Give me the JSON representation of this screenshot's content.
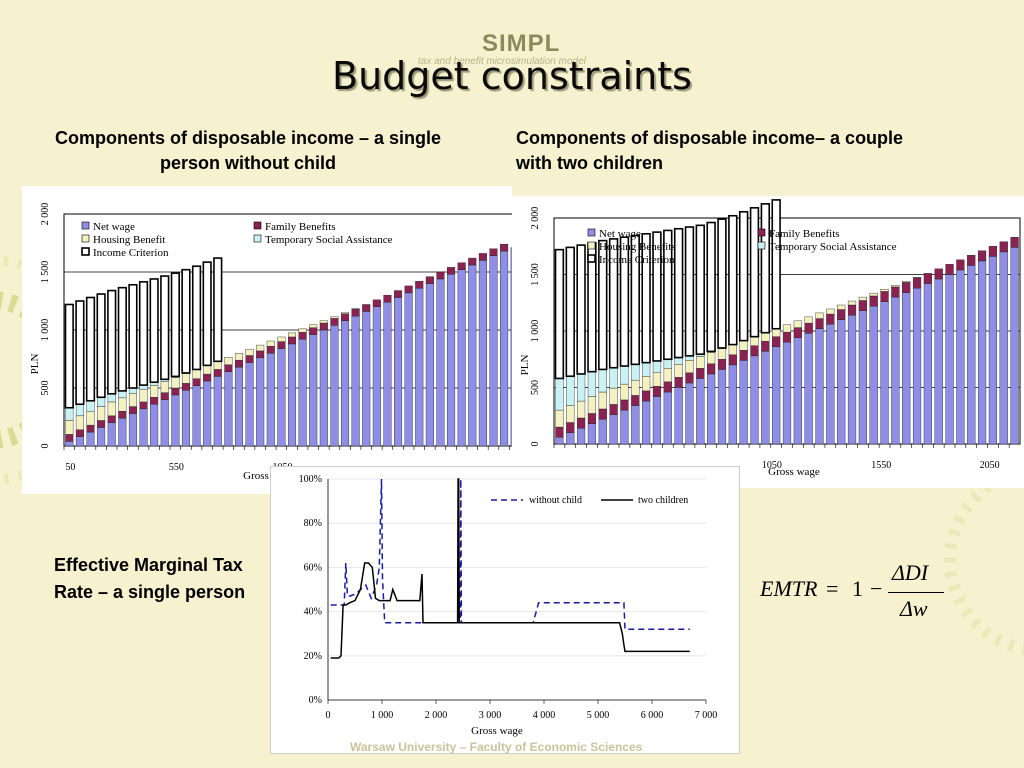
{
  "slide": {
    "logo": "SIMPL",
    "logo_sub": "tax and benefit microsimulation model",
    "title": "Budget constraints",
    "subtitle_left": "Components of disposable income – a single person without child",
    "subtitle_right": "Components of disposable income– a couple with two children",
    "emtr_label": "Effective Marginal Tax Rate – a single person",
    "formula": {
      "lhs": "EMTR",
      "eq": "=",
      "one": "1",
      "minus": "−",
      "num": "ΔDI",
      "den": "Δw"
    },
    "footer": "Warsaw University – Faculty of Economic Sciences",
    "colors": {
      "net_wage": "#8e8ee6",
      "family": "#8b2252",
      "housing": "#f5f0bf",
      "social": "#c8f2f5",
      "income": "#ffffff",
      "line_without": "#1a1aa0",
      "line_two": "#000000"
    }
  },
  "chart_data": [
    {
      "type": "bar",
      "stacked": true,
      "title": "",
      "ylabel": "PLN",
      "xlabel": "Gross wage",
      "ylim": [
        0,
        2000
      ],
      "yticks": [
        "0",
        "500",
        "1 000",
        "1 500",
        "2 000"
      ],
      "xticks": [
        "50",
        "550",
        "1050"
      ],
      "legend": [
        "Net wage",
        "Family Benefits",
        "Housing Benefit",
        "Temporary Social Assistance",
        "Income Criterion"
      ],
      "series": [
        {
          "name": "Net wage",
          "values": [
            40,
            80,
            120,
            160,
            200,
            240,
            280,
            320,
            360,
            400,
            440,
            480,
            520,
            560,
            600,
            640,
            680,
            720,
            760,
            800,
            840,
            880,
            920,
            960,
            1000,
            1040,
            1080,
            1120,
            1160,
            1200,
            1240,
            1280,
            1320,
            1360,
            1400,
            1440,
            1480,
            1520,
            1560,
            1600,
            1640,
            1680,
            1710
          ]
        },
        {
          "name": "Family Benefits",
          "values": [
            60,
            60,
            60,
            60,
            60,
            60,
            60,
            60,
            60,
            60,
            60,
            60,
            60,
            60,
            60,
            60,
            60,
            60,
            60,
            60,
            60,
            60,
            60,
            60,
            60,
            60,
            60,
            60,
            60,
            60,
            60,
            60,
            60,
            60,
            60,
            60,
            60,
            60,
            60,
            60,
            60,
            60,
            0
          ]
        },
        {
          "name": "Housing Benefit",
          "values": [
            120,
            120,
            120,
            120,
            120,
            115,
            110,
            105,
            100,
            95,
            90,
            85,
            80,
            75,
            70,
            65,
            60,
            55,
            50,
            45,
            40,
            35,
            30,
            25,
            20,
            15,
            10,
            5,
            0,
            0,
            0,
            0,
            0,
            0,
            0,
            0,
            0,
            0,
            0,
            0,
            0,
            0,
            0
          ]
        },
        {
          "name": "Temporary Social Assistance",
          "values": [
            110,
            100,
            90,
            80,
            70,
            60,
            50,
            40,
            30,
            20,
            10,
            5,
            0,
            0,
            0,
            0,
            0,
            0,
            0,
            0,
            0,
            0,
            0,
            0,
            0,
            0,
            0,
            0,
            0,
            0,
            0,
            0,
            0,
            0,
            0,
            0,
            0,
            0,
            0,
            0,
            0,
            0,
            0
          ]
        },
        {
          "name": "Income Criterion",
          "values": [
            890,
            890,
            890,
            890,
            890,
            890,
            890,
            890,
            890,
            890,
            890,
            890,
            890,
            890,
            890,
            0,
            0,
            0,
            0,
            0,
            0,
            0,
            0,
            0,
            0,
            0,
            0,
            0,
            0,
            0,
            0,
            0,
            0,
            0,
            0,
            0,
            0,
            0,
            0,
            0,
            0,
            0,
            0
          ]
        }
      ]
    },
    {
      "type": "bar",
      "stacked": true,
      "title": "",
      "ylabel": "PLN",
      "xlabel": "Gross wage",
      "ylim": [
        0,
        2000
      ],
      "yticks": [
        "0",
        "500",
        "1 000",
        "1 500",
        "2 000"
      ],
      "xticks": [
        "1050",
        "1550",
        "2050"
      ],
      "legend": [
        "Net wage",
        "Family Benefits",
        "Housing Benefits",
        "Temporary Social Assistance",
        "Income Criterion"
      ],
      "series": [
        {
          "name": "Net wage",
          "values": [
            60,
            100,
            140,
            180,
            220,
            260,
            300,
            340,
            380,
            420,
            460,
            500,
            540,
            580,
            620,
            660,
            700,
            740,
            780,
            820,
            860,
            900,
            940,
            980,
            1020,
            1060,
            1100,
            1140,
            1180,
            1220,
            1260,
            1300,
            1340,
            1380,
            1420,
            1460,
            1500,
            1540,
            1580,
            1620,
            1660,
            1700,
            1740
          ]
        },
        {
          "name": "Family Benefits",
          "values": [
            90,
            90,
            90,
            90,
            90,
            90,
            90,
            90,
            90,
            90,
            90,
            90,
            90,
            90,
            90,
            90,
            90,
            90,
            90,
            90,
            90,
            90,
            90,
            90,
            90,
            90,
            90,
            90,
            90,
            90,
            90,
            90,
            90,
            90,
            90,
            90,
            90,
            90,
            90,
            90,
            90,
            90,
            90
          ]
        },
        {
          "name": "Housing Benefits",
          "values": [
            150,
            150,
            150,
            150,
            150,
            145,
            140,
            135,
            130,
            125,
            120,
            115,
            110,
            105,
            100,
            95,
            90,
            85,
            80,
            75,
            70,
            65,
            60,
            55,
            50,
            45,
            40,
            35,
            30,
            25,
            20,
            15,
            10,
            5,
            0,
            0,
            0,
            0,
            0,
            0,
            0,
            0,
            0
          ]
        },
        {
          "name": "Temporary Social Assistance",
          "values": [
            280,
            260,
            240,
            220,
            200,
            180,
            160,
            140,
            120,
            100,
            80,
            60,
            40,
            20,
            10,
            5,
            0,
            0,
            0,
            0,
            0,
            0,
            0,
            0,
            0,
            0,
            0,
            0,
            0,
            0,
            0,
            0,
            0,
            0,
            0,
            0,
            0,
            0,
            0,
            0,
            0,
            0,
            0
          ]
        },
        {
          "name": "Income Criterion",
          "values": [
            1140,
            1140,
            1140,
            1140,
            1140,
            1140,
            1140,
            1140,
            1140,
            1140,
            1140,
            1140,
            1140,
            1140,
            1140,
            1140,
            1140,
            1140,
            1140,
            1140,
            1140,
            0,
            0,
            0,
            0,
            0,
            0,
            0,
            0,
            0,
            0,
            0,
            0,
            0,
            0,
            0,
            0,
            0,
            0,
            0,
            0,
            0,
            0
          ]
        }
      ]
    },
    {
      "type": "line",
      "title": "",
      "xlabel": "Gross wage",
      "ylabel": "",
      "xlim": [
        0,
        7000
      ],
      "ylim": [
        0,
        100
      ],
      "xticks": [
        "0",
        "1 000",
        "2 000",
        "3 000",
        "4 000",
        "5 000",
        "6 000",
        "7 000"
      ],
      "yticks": [
        "0%",
        "20%",
        "40%",
        "60%",
        "80%",
        "100%"
      ],
      "series": [
        {
          "name": "without child",
          "style": "dashed",
          "x": [
            50,
            300,
            330,
            360,
            400,
            520,
            600,
            700,
            800,
            900,
            950,
            990,
            1010,
            1050,
            1100,
            1200,
            1800,
            2450,
            2460,
            2470,
            3800,
            3900,
            5400,
            5480,
            5500,
            6700
          ],
          "y": [
            43,
            43,
            62,
            47,
            47,
            48,
            50,
            52,
            46,
            52,
            60,
            100,
            55,
            35,
            35,
            35,
            35,
            35,
            100,
            35,
            35,
            44,
            44,
            44,
            32,
            32
          ]
        },
        {
          "name": "two children",
          "style": "solid",
          "x": [
            50,
            200,
            240,
            280,
            330,
            400,
            500,
            600,
            680,
            750,
            820,
            880,
            950,
            1050,
            1150,
            1200,
            1280,
            1700,
            1740,
            1760,
            2400,
            2410,
            2420,
            2430,
            5400,
            5450,
            5480,
            5500,
            6700
          ],
          "y": [
            19,
            19,
            20,
            43,
            43,
            44,
            45,
            50,
            62,
            62,
            60,
            46,
            45,
            45,
            45,
            50,
            45,
            45,
            57,
            35,
            35,
            100,
            100,
            35,
            35,
            30,
            25,
            22,
            22
          ]
        }
      ]
    }
  ]
}
